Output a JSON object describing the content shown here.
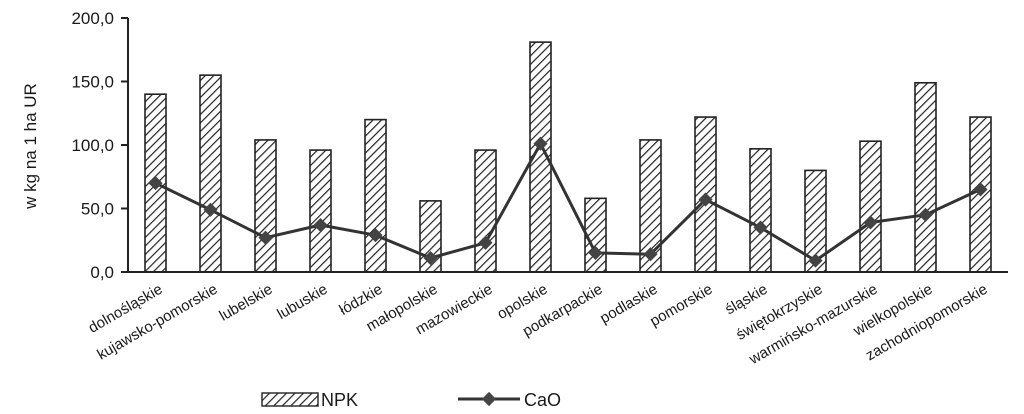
{
  "chart_data": {
    "type": "bar",
    "ylabel": "w kg na 1 ha UR",
    "ylim": [
      0,
      200
    ],
    "yticks": [
      "0,0",
      "50,0",
      "100,0",
      "150,0",
      "200,0"
    ],
    "grid": false,
    "legend_position": "bottom",
    "categories": [
      "dolnośląskie",
      "kujawsko-pomorskie",
      "lubelskie",
      "lubuskie",
      "łódzkie",
      "małopolskie",
      "mazowieckie",
      "opolskie",
      "podkarpackie",
      "podlaskie",
      "pomorskie",
      "śląskie",
      "świętokrzyskie",
      "warmińsko-mazurskie",
      "wielkopolskie",
      "zachodniopomorskie"
    ],
    "series": [
      {
        "name": "NPK",
        "kind": "bar",
        "values": [
          140,
          155,
          104,
          96,
          120,
          56,
          96,
          181,
          58,
          104,
          122,
          97,
          80,
          103,
          149,
          122
        ]
      },
      {
        "name": "CaO",
        "kind": "line",
        "values": [
          70,
          49,
          27,
          37,
          29,
          11,
          23,
          101,
          15,
          14,
          57,
          35,
          9,
          39,
          45,
          65
        ]
      }
    ]
  }
}
